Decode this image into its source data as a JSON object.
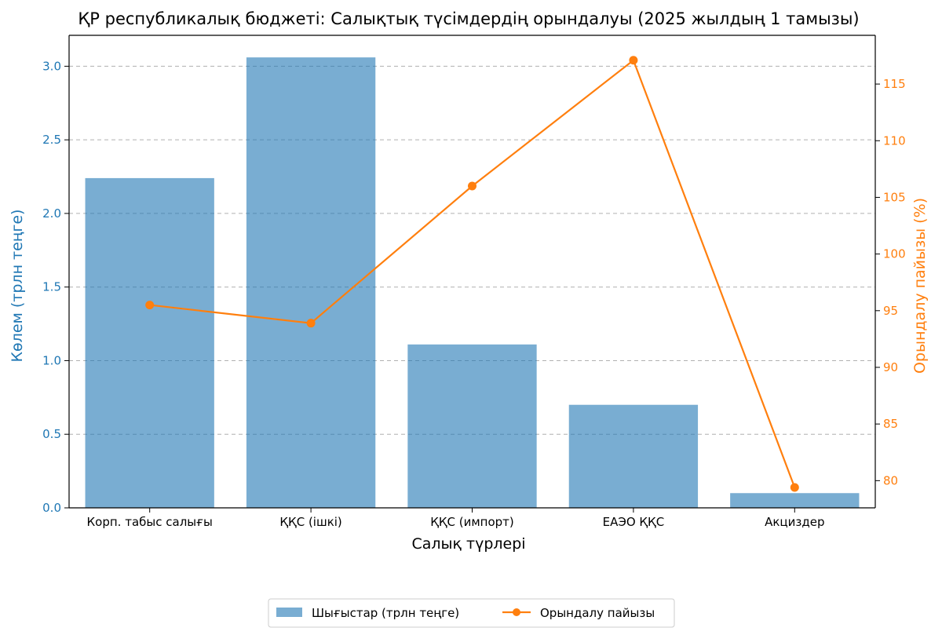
{
  "chart_data": {
    "type": "bar",
    "title": "ҚР республикалық бюджеті: Салықтық түсімдердің орындалуы (2025 жылдың 1 тамызы)",
    "xlabel": "Салық түрлері",
    "ylabel": "Көлем (трлн теңге)",
    "y2label": "Орындалу пайызы (%)",
    "categories": [
      "Корп. табыс салығы",
      "ҚҚС (ішкі)",
      "ҚҚС (импорт)",
      "ЕАЭО ҚҚС",
      "Акциздер"
    ],
    "series": [
      {
        "name": "Шығыстар (трлн теңге)",
        "type": "bar",
        "axis": "left",
        "color": "#1f77b4",
        "values": [
          2.24,
          3.06,
          1.11,
          0.7,
          0.1
        ]
      },
      {
        "name": "Орындалу пайызы",
        "type": "line",
        "axis": "right",
        "color": "#ff7f0e",
        "values": [
          95.5,
          93.9,
          106.0,
          117.1,
          79.4
        ]
      }
    ],
    "ylim": [
      0,
      3.21
    ],
    "yticks": [
      "0.0",
      "0.5",
      "1.0",
      "1.5",
      "2.0",
      "2.5",
      "3.0"
    ],
    "y2lim": [
      77.6,
      119.3
    ],
    "y2ticks": [
      "80",
      "85",
      "90",
      "95",
      "100",
      "105",
      "110",
      "115"
    ],
    "grid": "horizontal dashed",
    "legend": "bottom-center",
    "left_axis_color": "#1f77b4",
    "right_axis_color": "#ff7f0e"
  }
}
